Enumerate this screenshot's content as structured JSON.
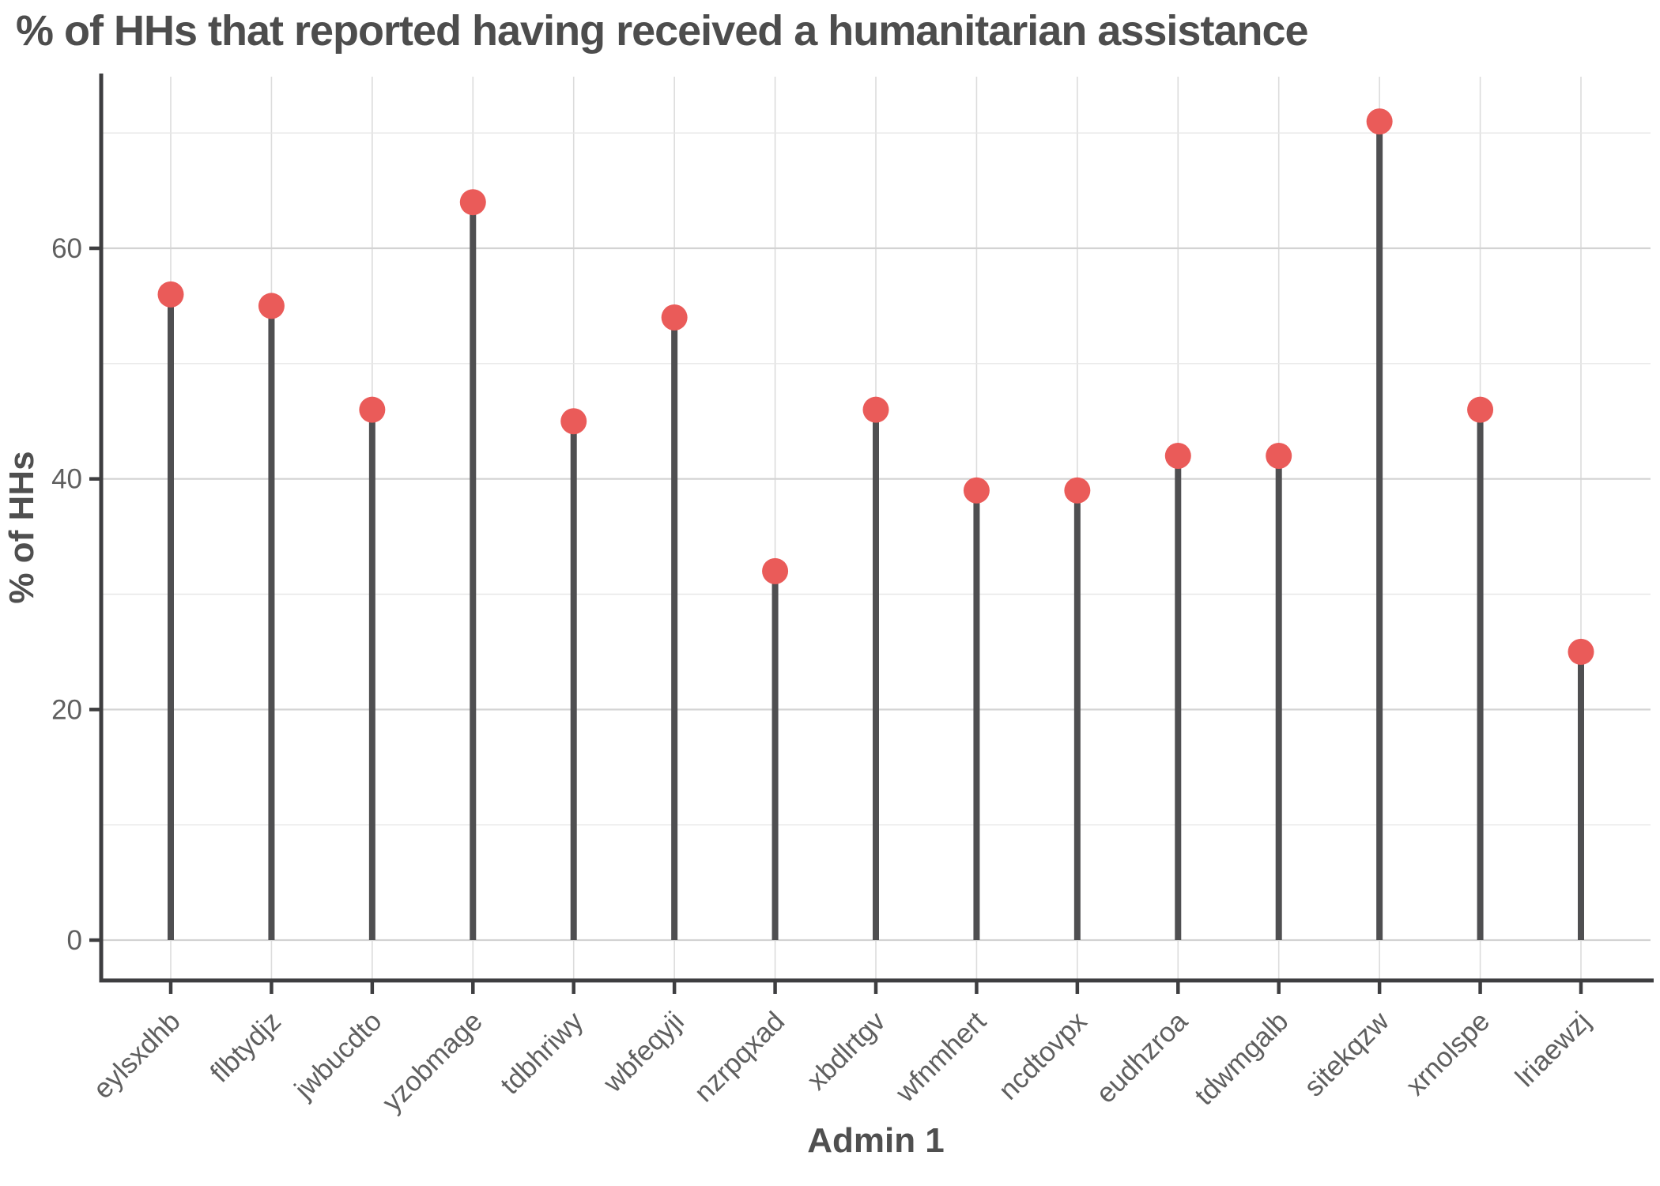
{
  "header": {
    "title": "% of HHs that reported having received a humanitarian assistance"
  },
  "chart_data": {
    "type": "lollipop",
    "title": "% of HHs that reported having received a humanitarian assistance",
    "xlabel": "Admin 1",
    "ylabel": "% of HHs",
    "categories": [
      "eylsxdhb",
      "flbtydjz",
      "jwbucdto",
      "yzobmage",
      "tdbhriwy",
      "wbfeqyji",
      "nzrpqxad",
      "xbdlrtgv",
      "wfnmhert",
      "ncdtovpx",
      "eudhzroa",
      "tdwmgalb",
      "sitekqzw",
      "xrnolspe",
      "lriaewzj"
    ],
    "values": [
      56,
      55,
      46,
      64,
      45,
      54,
      32,
      46,
      39,
      39,
      42,
      42,
      71,
      46,
      25
    ],
    "y_ticks": [
      0,
      20,
      40,
      60
    ],
    "y_minor_gridlines": [
      10,
      30,
      50,
      70
    ],
    "ylim": [
      -3.5,
      74.5
    ],
    "grid": "on",
    "legend": "none",
    "x_label_angle_deg": 45,
    "colors": {
      "point": "#EA5B59",
      "stem": "#4F4F51",
      "axis_line": "#3E3E40",
      "title_text": "#4D4D4D",
      "axis_title_text": "#4F4F4F",
      "tick_text": "#5F5F5F",
      "grid_major": "#D3D3D3",
      "grid_minor": "#E7E7E7",
      "grid_vertical": "#DCDCDC",
      "background": "#FFFFFF"
    }
  }
}
